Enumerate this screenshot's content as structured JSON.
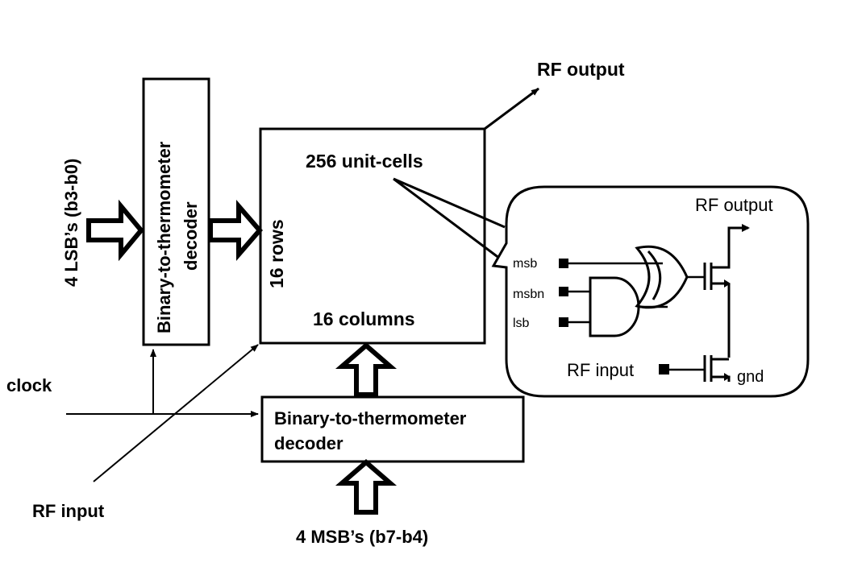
{
  "labels": {
    "rf_output_top": "RF output",
    "unit_cells": "256 unit-cells",
    "rows": "16 rows",
    "columns": "16 columns",
    "lsb_input": "4 LSB’s (b3-b0)",
    "decoder_left": "Binary-to-thermometer decoder",
    "decoder_left_line1": "Binary-to-thermometer",
    "decoder_left_line2": "decoder",
    "decoder_bottom_line1": "Binary-to-thermometer",
    "decoder_bottom_line2": "decoder",
    "clock": "clock",
    "rf_input_bottom": "RF input",
    "msb_input": "4 MSB’s (b7-b4)"
  },
  "unit_cell": {
    "rf_output": "RF output",
    "rf_input": "RF input",
    "msb": "msb",
    "msbn": "msbn",
    "lsb": "lsb",
    "gnd": "gnd"
  }
}
